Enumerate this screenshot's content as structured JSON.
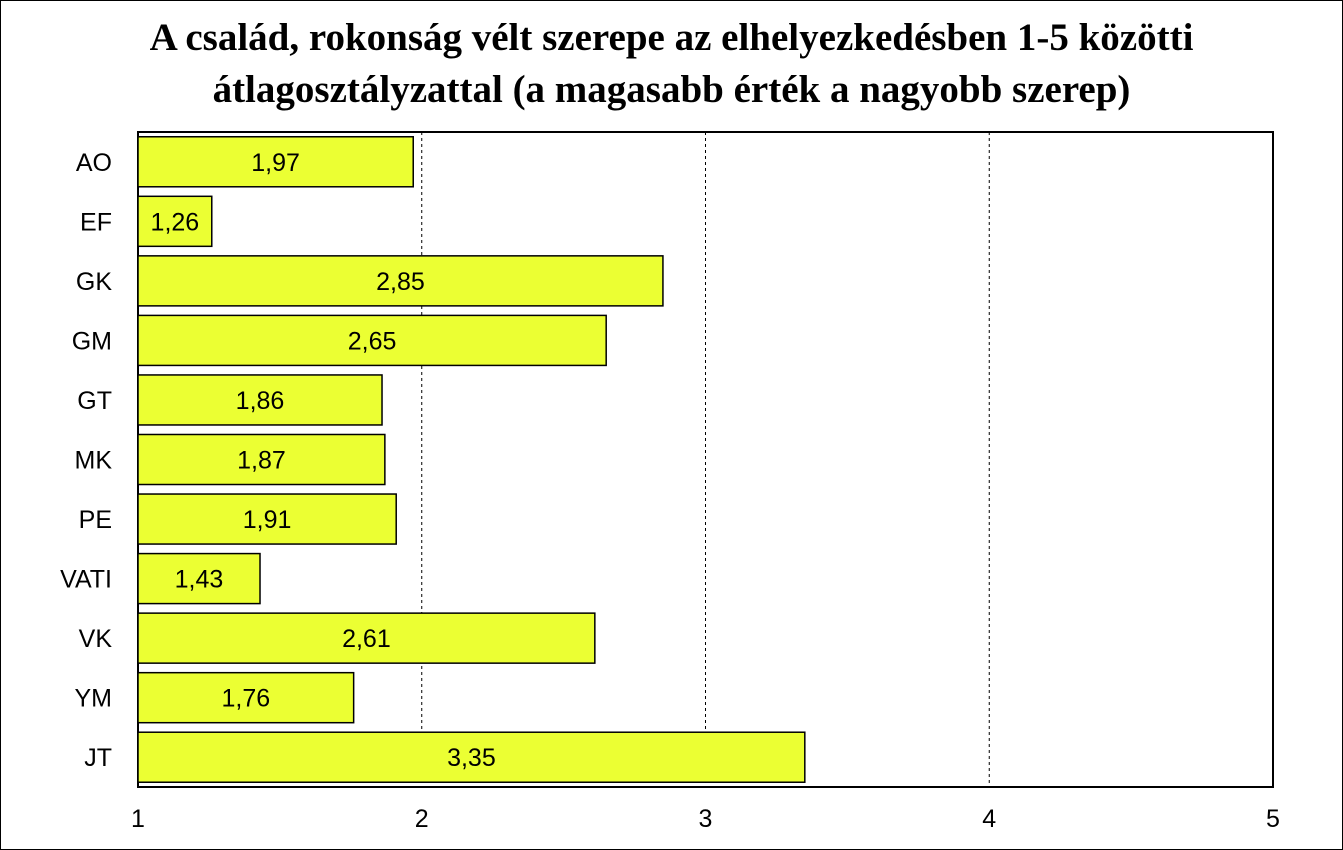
{
  "chart_data": {
    "type": "bar",
    "orientation": "horizontal",
    "title_lines": [
      "A család, rokonság vélt szerepe az elhelyezkedésben 1-5 közötti",
      "átlagosztályzattal (a magasabb érték a nagyobb szerep)"
    ],
    "categories": [
      "AO",
      "EF",
      "GK",
      "GM",
      "GT",
      "MK",
      "PE",
      "VATI",
      "VK",
      "YM",
      "JT"
    ],
    "values": [
      1.97,
      1.26,
      2.85,
      2.65,
      1.86,
      1.87,
      1.91,
      1.43,
      2.61,
      1.76,
      3.35
    ],
    "value_labels": [
      "1,97",
      "1,26",
      "2,85",
      "2,65",
      "1,86",
      "1,87",
      "1,91",
      "1,43",
      "2,61",
      "1,76",
      "3,35"
    ],
    "xlim": [
      1,
      5
    ],
    "x_ticks": [
      1,
      2,
      3,
      4,
      5
    ],
    "x_tick_labels": [
      "1",
      "2",
      "3",
      "4",
      "5"
    ],
    "grid": "vertical dashed",
    "bar_color": "#ebff33",
    "legend": "none"
  }
}
